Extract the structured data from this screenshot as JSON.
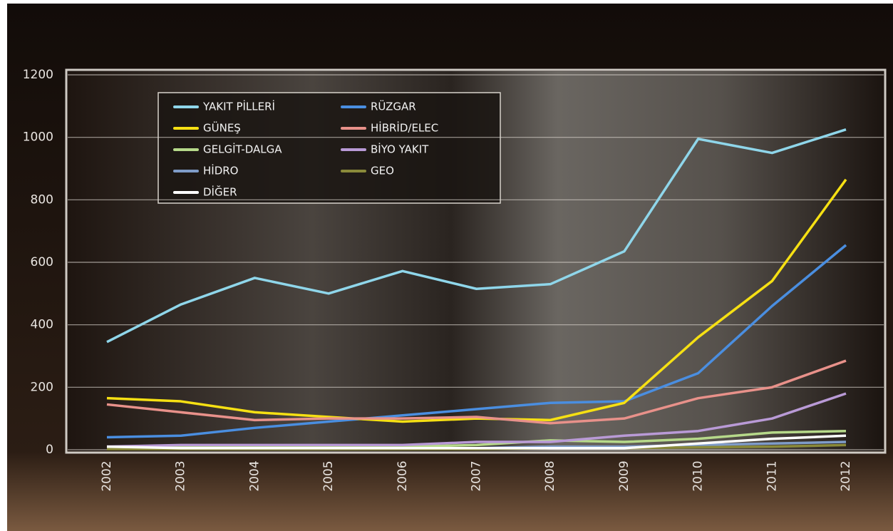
{
  "chart_data": {
    "type": "line",
    "categories": [
      "2002",
      "2003",
      "2004",
      "2005",
      "2006",
      "2007",
      "2008",
      "2009",
      "2010",
      "2011",
      "2012"
    ],
    "series": [
      {
        "name": "YAKIT PİLLERİ",
        "color": "#8fd6ea",
        "values": [
          345,
          465,
          550,
          500,
          572,
          515,
          530,
          635,
          995,
          950,
          1025
        ]
      },
      {
        "name": "RÜZGAR",
        "color": "#4a8ee0",
        "values": [
          40,
          45,
          70,
          90,
          110,
          130,
          150,
          155,
          245,
          460,
          655
        ]
      },
      {
        "name": "GÜNEŞ",
        "color": "#f6e013",
        "values": [
          165,
          155,
          120,
          105,
          90,
          100,
          95,
          150,
          360,
          540,
          865
        ]
      },
      {
        "name": "HİBRİD/ELEC",
        "color": "#e8918a",
        "values": [
          145,
          120,
          95,
          100,
          100,
          105,
          85,
          100,
          165,
          200,
          285
        ]
      },
      {
        "name": "GELGİT-DALGA",
        "color": "#b6d98a",
        "values": [
          5,
          10,
          10,
          10,
          10,
          15,
          30,
          25,
          35,
          55,
          60
        ]
      },
      {
        "name": "BİYO YAKIT",
        "color": "#b99ad6",
        "values": [
          10,
          15,
          15,
          15,
          15,
          25,
          25,
          45,
          60,
          100,
          180
        ]
      },
      {
        "name": "HİDRO",
        "color": "#7f9cc8",
        "values": [
          5,
          5,
          5,
          5,
          5,
          5,
          10,
          10,
          15,
          20,
          25
        ]
      },
      {
        "name": "GEO",
        "color": "#8a8a3a",
        "values": [
          2,
          2,
          2,
          2,
          2,
          2,
          5,
          5,
          8,
          10,
          15
        ]
      },
      {
        "name": "DİĞER",
        "color": "#ffffff",
        "values": [
          10,
          5,
          5,
          5,
          5,
          5,
          5,
          5,
          20,
          35,
          45
        ]
      }
    ],
    "ylim": [
      0,
      1200
    ],
    "yticks": [
      0,
      200,
      400,
      600,
      800,
      1000,
      1200
    ],
    "grid": true
  }
}
